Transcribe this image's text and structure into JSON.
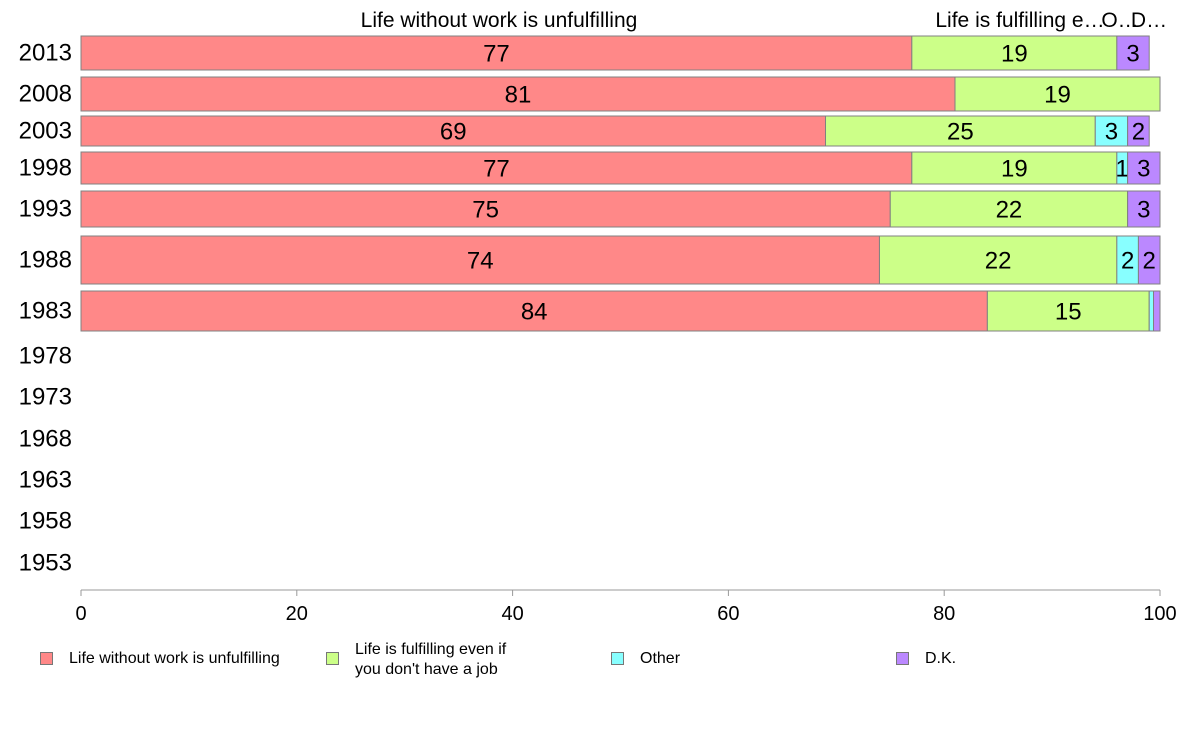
{
  "chart_data": {
    "type": "bar",
    "orientation": "horizontal",
    "stacked": true,
    "categories": [
      "2013",
      "2008",
      "2003",
      "1998",
      "1993",
      "1988",
      "1983",
      "1978",
      "1973",
      "1968",
      "1963",
      "1958",
      "1953"
    ],
    "series": [
      {
        "name": "Life without work is unfulfilling",
        "color": "#ff8888",
        "values": [
          77,
          81,
          69,
          77,
          75,
          74,
          84,
          null,
          null,
          null,
          null,
          null,
          null
        ],
        "labels": [
          "77",
          "81",
          "69",
          "77",
          "75",
          "74",
          "84",
          "",
          "",
          "",
          "",
          "",
          ""
        ]
      },
      {
        "name": "Life is fulfilling even if you don't have a job",
        "color": "#ccff88",
        "values": [
          19,
          19,
          25,
          19,
          22,
          22,
          15,
          null,
          null,
          null,
          null,
          null,
          null
        ],
        "labels": [
          "19",
          "19",
          "25",
          "19",
          "22",
          "22",
          "15",
          "",
          "",
          "",
          "",
          "",
          ""
        ]
      },
      {
        "name": "Other",
        "color": "#88ffff",
        "values": [
          0,
          0,
          3,
          1,
          0,
          2,
          0.4,
          null,
          null,
          null,
          null,
          null,
          null
        ],
        "labels": [
          "",
          "",
          "3",
          "1",
          "",
          "2",
          "",
          "",
          "",
          "",
          "",
          "",
          ""
        ]
      },
      {
        "name": "D.K.",
        "color": "#bb88ff",
        "values": [
          3,
          0,
          2,
          3,
          3,
          2,
          0.6,
          null,
          null,
          null,
          null,
          null,
          null
        ],
        "labels": [
          "3",
          "",
          "2",
          "3",
          "3",
          "2",
          "",
          "",
          "",
          "",
          "",
          "",
          ""
        ]
      }
    ],
    "column_headers": [
      "Life without work is unfulfilling",
      "Life is fulfilling e…",
      "O…",
      "D…"
    ],
    "xlim": [
      0,
      100
    ],
    "x_ticks": [
      "0",
      "20",
      "40",
      "60",
      "80",
      "100"
    ],
    "grid": false,
    "legend_position": "bottom",
    "legend": [
      {
        "lines": [
          "Life without work is unfulfilling"
        ],
        "color": "#ff8888"
      },
      {
        "lines": [
          "Life is fulfilling even if",
          "you don't have a job"
        ],
        "color": "#ccff88"
      },
      {
        "lines": [
          "Other"
        ],
        "color": "#88ffff"
      },
      {
        "lines": [
          "D.K."
        ],
        "color": "#bb88ff"
      }
    ]
  }
}
